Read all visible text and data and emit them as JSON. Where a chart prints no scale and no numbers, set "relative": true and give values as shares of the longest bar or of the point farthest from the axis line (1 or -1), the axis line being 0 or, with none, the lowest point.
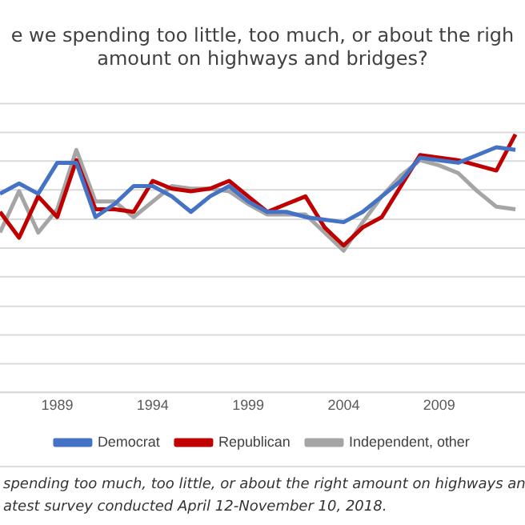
{
  "chart_data": {
    "type": "line",
    "title": [
      "e we spending too little, too much, or about the righ",
      "amount on highways and bridges?"
    ],
    "x": [
      1986,
      1987,
      1988,
      1989,
      1990,
      1991,
      1992,
      1993,
      1994,
      1995,
      1996,
      1997,
      1998,
      1999,
      2000,
      2001,
      2002,
      2003,
      2004,
      2005,
      2006,
      2007,
      2008,
      2009,
      2010,
      2011,
      2012,
      2013
    ],
    "xlim": [
      1986,
      2013.5
    ],
    "xticks": [
      1989,
      1994,
      1999,
      2004,
      2009
    ],
    "relative": true,
    "grid": "y",
    "legend": "bottom",
    "marker": "none",
    "line_style": "solid",
    "series": [
      {
        "name": "Democrat",
        "color": "#4472c4",
        "values": [
          0.77,
          0.81,
          0.77,
          0.89,
          0.89,
          0.68,
          0.73,
          0.8,
          0.8,
          0.76,
          0.7,
          0.76,
          0.8,
          0.74,
          0.7,
          0.7,
          0.68,
          0.67,
          0.66,
          0.7,
          0.76,
          0.82,
          0.91,
          0.9,
          0.89,
          0.92,
          0.95,
          0.94
        ]
      },
      {
        "name": "Republican",
        "color": "#c00000",
        "values": [
          0.7,
          0.6,
          0.76,
          0.68,
          0.9,
          0.71,
          0.71,
          0.7,
          0.82,
          0.79,
          0.78,
          0.79,
          0.82,
          0.76,
          0.7,
          0.73,
          0.76,
          0.64,
          0.57,
          0.64,
          0.68,
          0.8,
          0.92,
          0.91,
          0.9,
          0.88,
          0.86,
          1
        ]
      },
      {
        "name": "Independent, other",
        "color": "#a5a5a5",
        "values": [
          0.62,
          0.78,
          0.62,
          0.71,
          0.94,
          0.74,
          0.74,
          0.68,
          0.74,
          0.8,
          0.79,
          0.79,
          0.78,
          0.73,
          0.69,
          0.69,
          0.69,
          0.62,
          0.55,
          0.66,
          0.76,
          0.84,
          0.9,
          0.88,
          0.85,
          0.78,
          0.72,
          0.71
        ]
      }
    ],
    "annotations": [
      "spending too much, too little, or about the right amount on highways an",
      "atest survey conducted April 12-November 10, 2018."
    ]
  }
}
